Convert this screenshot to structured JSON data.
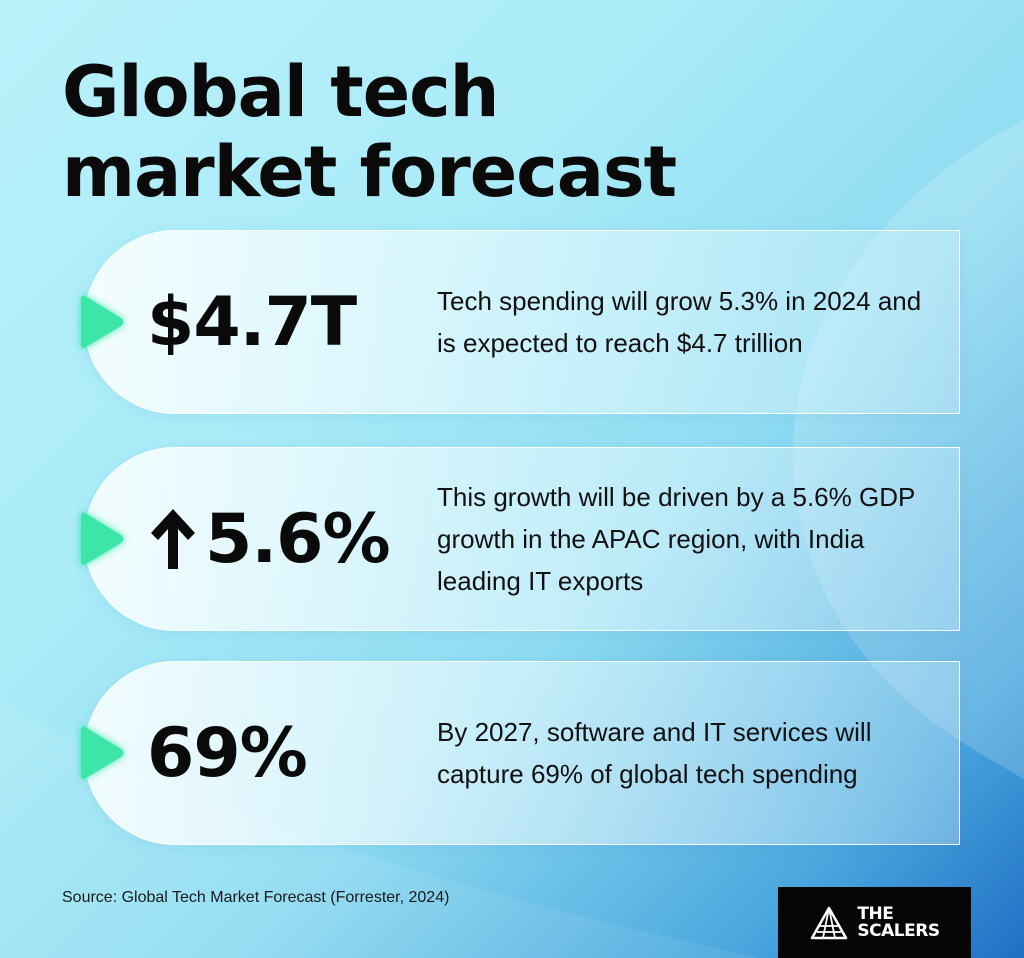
{
  "title": {
    "line1": "Global tech",
    "line2": "market forecast"
  },
  "cards": [
    {
      "stat": "$4.7T",
      "description": "Tech spending will grow 5.3% in 2024 and is expected to reach $4.7 trillion"
    },
    {
      "stat_icon": "arrow-up-icon",
      "stat": "5.6%",
      "description": "This growth will be driven by a 5.6% GDP growth in the APAC region, with India leading IT exports"
    },
    {
      "stat": "69%",
      "description": "By 2027, software and IT services will capture 69% of global tech spending"
    }
  ],
  "source": "Source: Global Tech Market Forecast (Forrester, 2024)",
  "logo": {
    "line1": "THE",
    "line2": "SCALERS",
    "icon": "mountain-icon"
  },
  "colors": {
    "accent_green": "#3ee6a8",
    "logo_bg": "#050505",
    "text": "#0a0a0a"
  }
}
